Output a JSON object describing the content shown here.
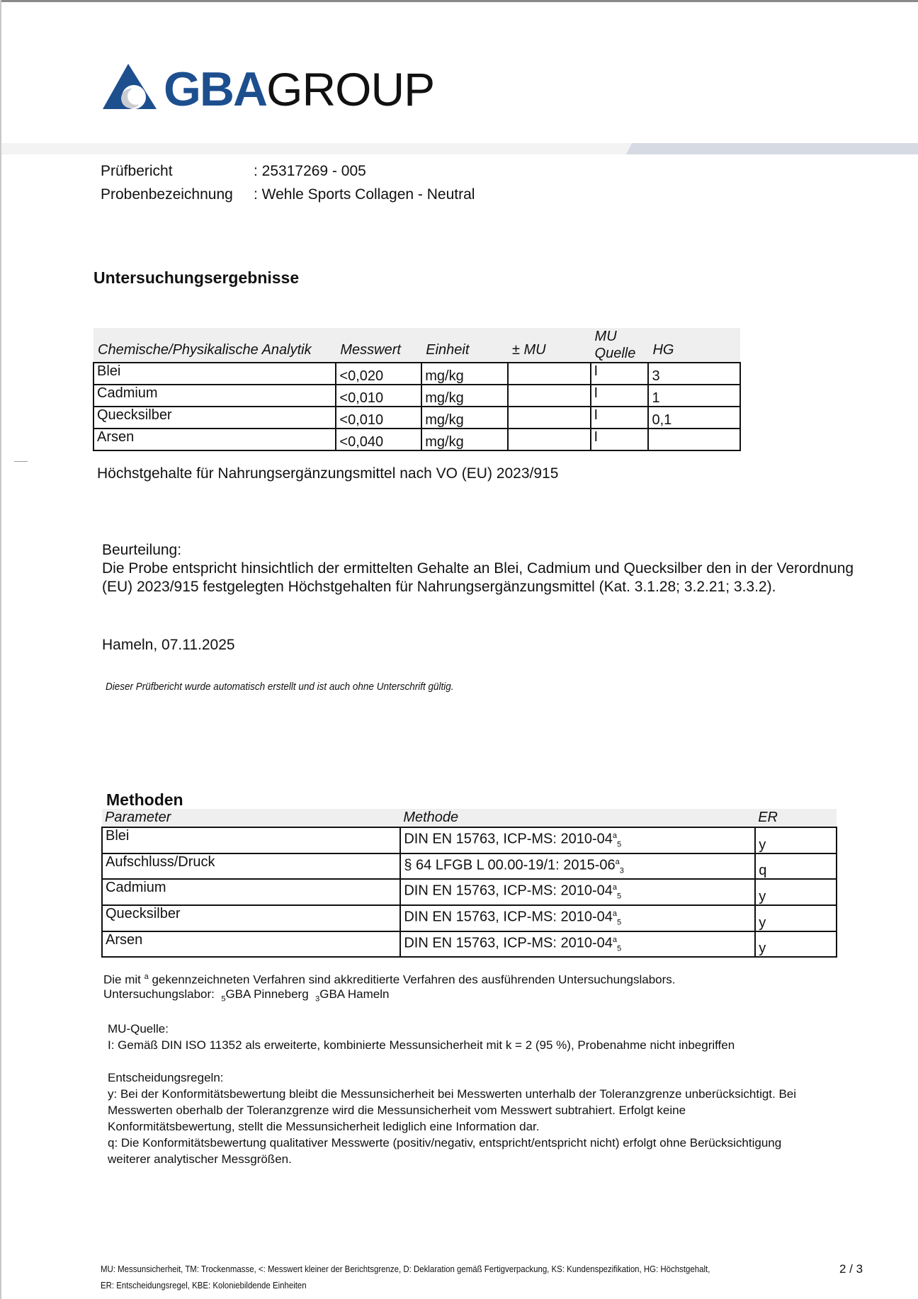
{
  "logo": {
    "brand_bold": "GBA",
    "brand_light": "GROUP",
    "colors": {
      "blue": "#1d4f8f",
      "gray": "#c9ccd1"
    }
  },
  "header": {
    "report_label": "Prüfbericht",
    "report_value": ": 25317269  - 005",
    "sample_label": "Probenbezeichnung",
    "sample_value": ": Wehle Sports Collagen - Neutral"
  },
  "results": {
    "title": "Untersuchungsergebnisse",
    "columns": [
      "Chemische/Physikalische Analytik",
      "Messwert",
      "Einheit",
      "± MU",
      "MU Quelle",
      "HG"
    ],
    "rows": [
      {
        "name": "Blei",
        "value": "<0,020",
        "unit": "mg/kg",
        "mu": "",
        "mu_source": "I",
        "hg": "3"
      },
      {
        "name": "Cadmium",
        "value": "<0,010",
        "unit": "mg/kg",
        "mu": "",
        "mu_source": "I",
        "hg": "1"
      },
      {
        "name": "Quecksilber",
        "value": "<0,010",
        "unit": "mg/kg",
        "mu": "",
        "mu_source": "I",
        "hg": "0,1"
      },
      {
        "name": "Arsen",
        "value": "<0,040",
        "unit": "mg/kg",
        "mu": "",
        "mu_source": "I",
        "hg": ""
      }
    ],
    "note": "Höchstgehalte für Nahrungsergänzungsmittel nach VO (EU) 2023/915"
  },
  "assessment": {
    "label": "Beurteilung:",
    "line1": "Die Probe entspricht hinsichtlich der ermittelten Gehalte an Blei, Cadmium und Quecksilber den in der Verordnung",
    "line2": "(EU) 2023/915 festgelegten Höchstgehalten für Nahrungsergänzungsmittel (Kat. 3.1.28; 3.2.21; 3.3.2)."
  },
  "place_date": "Hameln, 07.11.2025",
  "auto_note": "Dieser Prüfbericht wurde automatisch erstellt und ist auch ohne Unterschrift gültig.",
  "methods": {
    "title": "Methoden",
    "columns": [
      "Parameter",
      "Methode",
      "ER"
    ],
    "rows": [
      {
        "param": "Blei",
        "method": "DIN EN 15763, ICP-MS: 2010-04",
        "sup": "a",
        "sub": "5",
        "er": "y"
      },
      {
        "param": "Aufschluss/Druck",
        "method": "§ 64 LFGB L 00.00-19/1: 2015-06",
        "sup": "a",
        "sub": "3",
        "er": "q"
      },
      {
        "param": "Cadmium",
        "method": "DIN EN 15763, ICP-MS: 2010-04",
        "sup": "a",
        "sub": "5",
        "er": "y"
      },
      {
        "param": "Quecksilber",
        "method": "DIN EN 15763, ICP-MS: 2010-04",
        "sup": "a",
        "sub": "5",
        "er": "y"
      },
      {
        "param": "Arsen",
        "method": "DIN EN 15763, ICP-MS: 2010-04",
        "sup": "a",
        "sub": "5",
        "er": "y"
      }
    ]
  },
  "accreditation": {
    "pre": "Die mit ",
    "sup": "a",
    "post": " gekennzeichneten Verfahren sind akkreditierte Verfahren des ausführenden Untersuchungslabors.",
    "lab_label": "Untersuchungslabor:  ",
    "lab1_idx": "5",
    "lab1": "GBA Pinneberg  ",
    "lab2_idx": "3",
    "lab2": "GBA Hameln"
  },
  "mu_source": {
    "label": "MU-Quelle:",
    "text": "I: Gemäß DIN ISO 11352 als erweiterte, kombinierte Messunsicherheit mit k = 2 (95 %), Probenahme nicht inbegriffen"
  },
  "decision_rules": {
    "label": "Entscheidungsregeln:",
    "lines": [
      "y: Bei der Konformitätsbewertung bleibt die Messunsicherheit bei Messwerten unterhalb der Toleranzgrenze unberücksichtigt. Bei",
      "Messwerten oberhalb der Toleranzgrenze wird die Messunsicherheit vom Messwert subtrahiert. Erfolgt keine",
      "Konformitätsbewertung, stellt die Messunsicherheit lediglich eine Information dar.",
      "q: Die Konformitätsbewertung qualitativer Messwerte (positiv/negativ, entspricht/entspricht nicht) erfolgt ohne Berücksichtigung",
      "weiterer analytischer Messgrößen."
    ]
  },
  "footer": {
    "line1": "MU: Messunsicherheit, TM: Trockenmasse, <: Messwert kleiner der Berichtsgrenze, D: Deklaration gemäß Fertigverpackung, KS: Kundenspezifikation, HG: Höchstgehalt,",
    "line2": "ER: Entscheidungsregel, KBE: Koloniebildende Einheiten",
    "page": "2 / 3"
  }
}
